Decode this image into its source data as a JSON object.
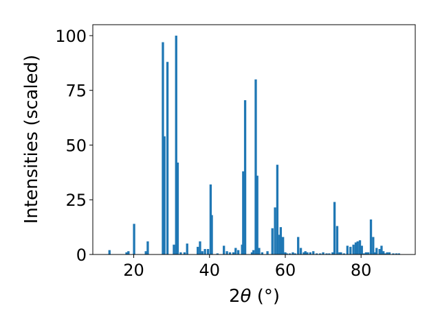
{
  "chart_data": {
    "type": "bar",
    "title": "",
    "xlabel_prefix": "2",
    "xlabel_var": "θ",
    "xlabel_unit": " (°)",
    "ylabel": "Intensities (scaled)",
    "xlim": [
      9.2,
      94.3
    ],
    "ylim": [
      0,
      105
    ],
    "xticks": [
      20,
      40,
      60,
      80
    ],
    "yticks": [
      0,
      25,
      50,
      75,
      100
    ],
    "bar_width": 0.6,
    "bar_color": "#1f77b4",
    "grid": false,
    "legend": "none",
    "series": [
      {
        "x": [
          13.6,
          18.1,
          18.6,
          20.1,
          23.2,
          23.7,
          27.7,
          28.1,
          28.9,
          30.6,
          31.2,
          31.6,
          32.4,
          33.4,
          34.1,
          36.9,
          37.5,
          38.1,
          38.8,
          39.6,
          40.3,
          40.6,
          42.1,
          43.8,
          44.6,
          45.4,
          46.3,
          46.9,
          47.6,
          48.6,
          48.9,
          49.4,
          51.2,
          51.6,
          52.2,
          52.6,
          53.1,
          53.9,
          55.3,
          56.6,
          57.3,
          57.9,
          58.5,
          58.8,
          59.4,
          60.0,
          60.4,
          61.2,
          62.0,
          62.6,
          63.4,
          64.1,
          64.9,
          65.3,
          65.8,
          66.6,
          67.4,
          68.3,
          69.2,
          70.0,
          70.9,
          71.6,
          72.5,
          73.0,
          73.7,
          74.3,
          74.7,
          75.5,
          76.4,
          77.2,
          78.0,
          78.6,
          79.1,
          79.7,
          80.2,
          80.8,
          81.3,
          81.9,
          82.6,
          83.2,
          83.8,
          84.1,
          84.9,
          85.4,
          85.9,
          86.4,
          86.9,
          87.5,
          88.5,
          89.3,
          90.0
        ],
        "values": [
          2.0,
          1.0,
          1.5,
          14.0,
          1.5,
          6.0,
          97.0,
          54.0,
          88.0,
          4.5,
          100.0,
          42.0,
          1.0,
          1.0,
          5.0,
          3.5,
          6.0,
          1.5,
          2.5,
          2.5,
          32.0,
          18.0,
          0.5,
          4.0,
          1.5,
          1.0,
          1.0,
          3.0,
          2.0,
          4.5,
          38.0,
          70.5,
          1.0,
          2.0,
          80.0,
          36.0,
          3.0,
          1.0,
          1.5,
          12.0,
          21.5,
          41.0,
          9.0,
          12.5,
          8.0,
          1.0,
          0.5,
          0.5,
          1.0,
          0.5,
          8.0,
          3.0,
          1.0,
          1.5,
          1.0,
          1.0,
          1.5,
          0.5,
          0.5,
          1.0,
          0.5,
          0.5,
          1.0,
          24.0,
          13.0,
          1.0,
          1.0,
          0.5,
          4.0,
          3.5,
          4.5,
          5.5,
          6.0,
          6.5,
          4.0,
          0.5,
          1.0,
          1.0,
          16.0,
          8.0,
          1.0,
          3.0,
          2.5,
          4.0,
          1.5,
          0.5,
          1.0,
          1.0,
          0.5,
          0.5,
          0.5
        ]
      }
    ]
  }
}
